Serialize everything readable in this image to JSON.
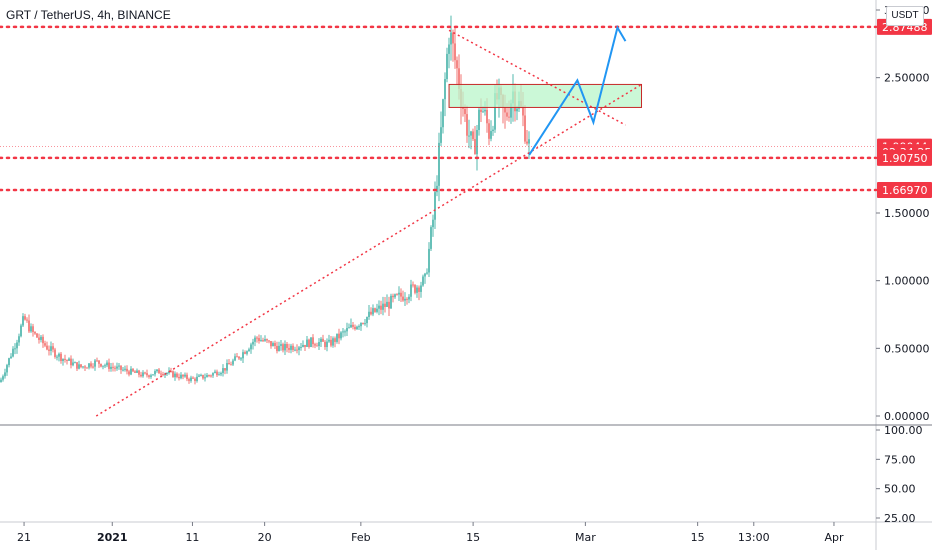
{
  "header": {
    "symbol_title": "GRT / TetherUS, 4h, BINANCE",
    "unit_label": "USDT"
  },
  "colors": {
    "bull": "#26a69a",
    "bear": "#ef5350",
    "level_line": "#f23645",
    "trend_line": "#f23645",
    "zone_fill": "#b9f6ca",
    "zone_border": "#c62828",
    "projection": "#2196f3",
    "badge": "#f23645"
  },
  "chart_data": {
    "type": "candlestick",
    "panes": [
      {
        "name": "price",
        "y_ticks": [
          "3.00000",
          "2.50000",
          "1.50000",
          "1.00000",
          "0.50000",
          "0.00000"
        ],
        "y_tick_values": [
          3.0,
          2.5,
          1.5,
          1.0,
          0.5,
          0.0
        ],
        "ylim": [
          -0.05,
          3.1
        ]
      },
      {
        "name": "oscillator",
        "y_ticks": [
          "100.00",
          "75.00",
          "50.00",
          "25.00"
        ],
        "y_tick_values": [
          100,
          75,
          50,
          25
        ],
        "ylim": [
          18,
          100
        ]
      }
    ],
    "x_ticks": [
      {
        "label": "21",
        "bold": false,
        "date": "2020-12-21"
      },
      {
        "label": "2021",
        "bold": true,
        "date": "2021-01-01"
      },
      {
        "label": "11",
        "bold": false,
        "date": "2021-01-11"
      },
      {
        "label": "20",
        "bold": false,
        "date": "2021-01-20"
      },
      {
        "label": "Feb",
        "bold": false,
        "date": "2021-02-01"
      },
      {
        "label": "15",
        "bold": false,
        "date": "2021-02-15"
      },
      {
        "label": "Mar",
        "bold": false,
        "date": "2021-03-01"
      },
      {
        "label": "15",
        "bold": false,
        "date": "2021-03-15"
      },
      {
        "label": "13:00",
        "bold": false,
        "date": "2021-03-22"
      },
      {
        "label": "Apr",
        "bold": false,
        "date": "2021-04-01"
      }
    ],
    "price_path": [
      [
        "2020-12-18",
        0.25
      ],
      [
        "2020-12-20",
        0.55
      ],
      [
        "2020-12-21",
        0.72
      ],
      [
        "2020-12-22",
        0.62
      ],
      [
        "2020-12-24",
        0.5
      ],
      [
        "2020-12-26",
        0.42
      ],
      [
        "2020-12-28",
        0.36
      ],
      [
        "2020-12-30",
        0.4
      ],
      [
        "2021-01-01",
        0.36
      ],
      [
        "2021-01-03",
        0.33
      ],
      [
        "2021-01-05",
        0.3
      ],
      [
        "2021-01-07",
        0.33
      ],
      [
        "2021-01-09",
        0.3
      ],
      [
        "2021-01-11",
        0.27
      ],
      [
        "2021-01-13",
        0.3
      ],
      [
        "2021-01-15",
        0.35
      ],
      [
        "2021-01-17",
        0.45
      ],
      [
        "2021-01-19",
        0.58
      ],
      [
        "2021-01-20",
        0.55
      ],
      [
        "2021-01-22",
        0.5
      ],
      [
        "2021-01-24",
        0.52
      ],
      [
        "2021-01-26",
        0.55
      ],
      [
        "2021-01-28",
        0.53
      ],
      [
        "2021-01-30",
        0.62
      ],
      [
        "2021-02-01",
        0.7
      ],
      [
        "2021-02-03",
        0.78
      ],
      [
        "2021-02-05",
        0.85
      ],
      [
        "2021-02-07",
        0.92
      ],
      [
        "2021-02-09",
        1.0
      ],
      [
        "2021-02-10",
        1.45
      ],
      [
        "2021-02-11",
        2.1
      ],
      [
        "2021-02-12",
        2.85
      ],
      [
        "2021-02-13",
        2.55
      ],
      [
        "2021-02-14",
        2.2
      ],
      [
        "2021-02-15",
        1.95
      ],
      [
        "2021-02-16",
        2.3
      ],
      [
        "2021-02-17",
        2.1
      ],
      [
        "2021-02-18",
        2.35
      ],
      [
        "2021-02-19",
        2.2
      ],
      [
        "2021-02-20",
        2.4
      ],
      [
        "2021-02-21",
        2.25
      ],
      [
        "2021-02-22",
        1.99
      ]
    ],
    "horizontal_levels": [
      2.87488,
      1.9075,
      1.6697
    ],
    "last_price": 1.99044,
    "price_badges": [
      {
        "value": 2.87488,
        "text": "2.87488"
      },
      {
        "value": 1.99044,
        "text": "1.99044"
      },
      {
        "value": 1.95,
        "text": "02:34:25",
        "countdown": true
      },
      {
        "value": 1.9075,
        "text": "1.90750"
      },
      {
        "value": 1.6697,
        "text": "1.66970"
      }
    ],
    "trendlines": [
      {
        "from": [
          "2020-12-30",
          0.0
        ],
        "to": [
          "2021-03-08",
          2.45
        ]
      },
      {
        "from": [
          "2021-02-12",
          2.85
        ],
        "to": [
          "2021-03-06",
          2.15
        ]
      }
    ],
    "zone": {
      "from": "2021-02-12",
      "to": "2021-03-08",
      "top": 2.45,
      "bottom": 2.28
    },
    "projection_path": [
      [
        "2021-02-22",
        1.93
      ],
      [
        "2021-02-28",
        2.48
      ],
      [
        "2021-03-02",
        2.17
      ],
      [
        "2021-03-05",
        2.87
      ],
      [
        "2021-03-06",
        2.77
      ]
    ]
  }
}
